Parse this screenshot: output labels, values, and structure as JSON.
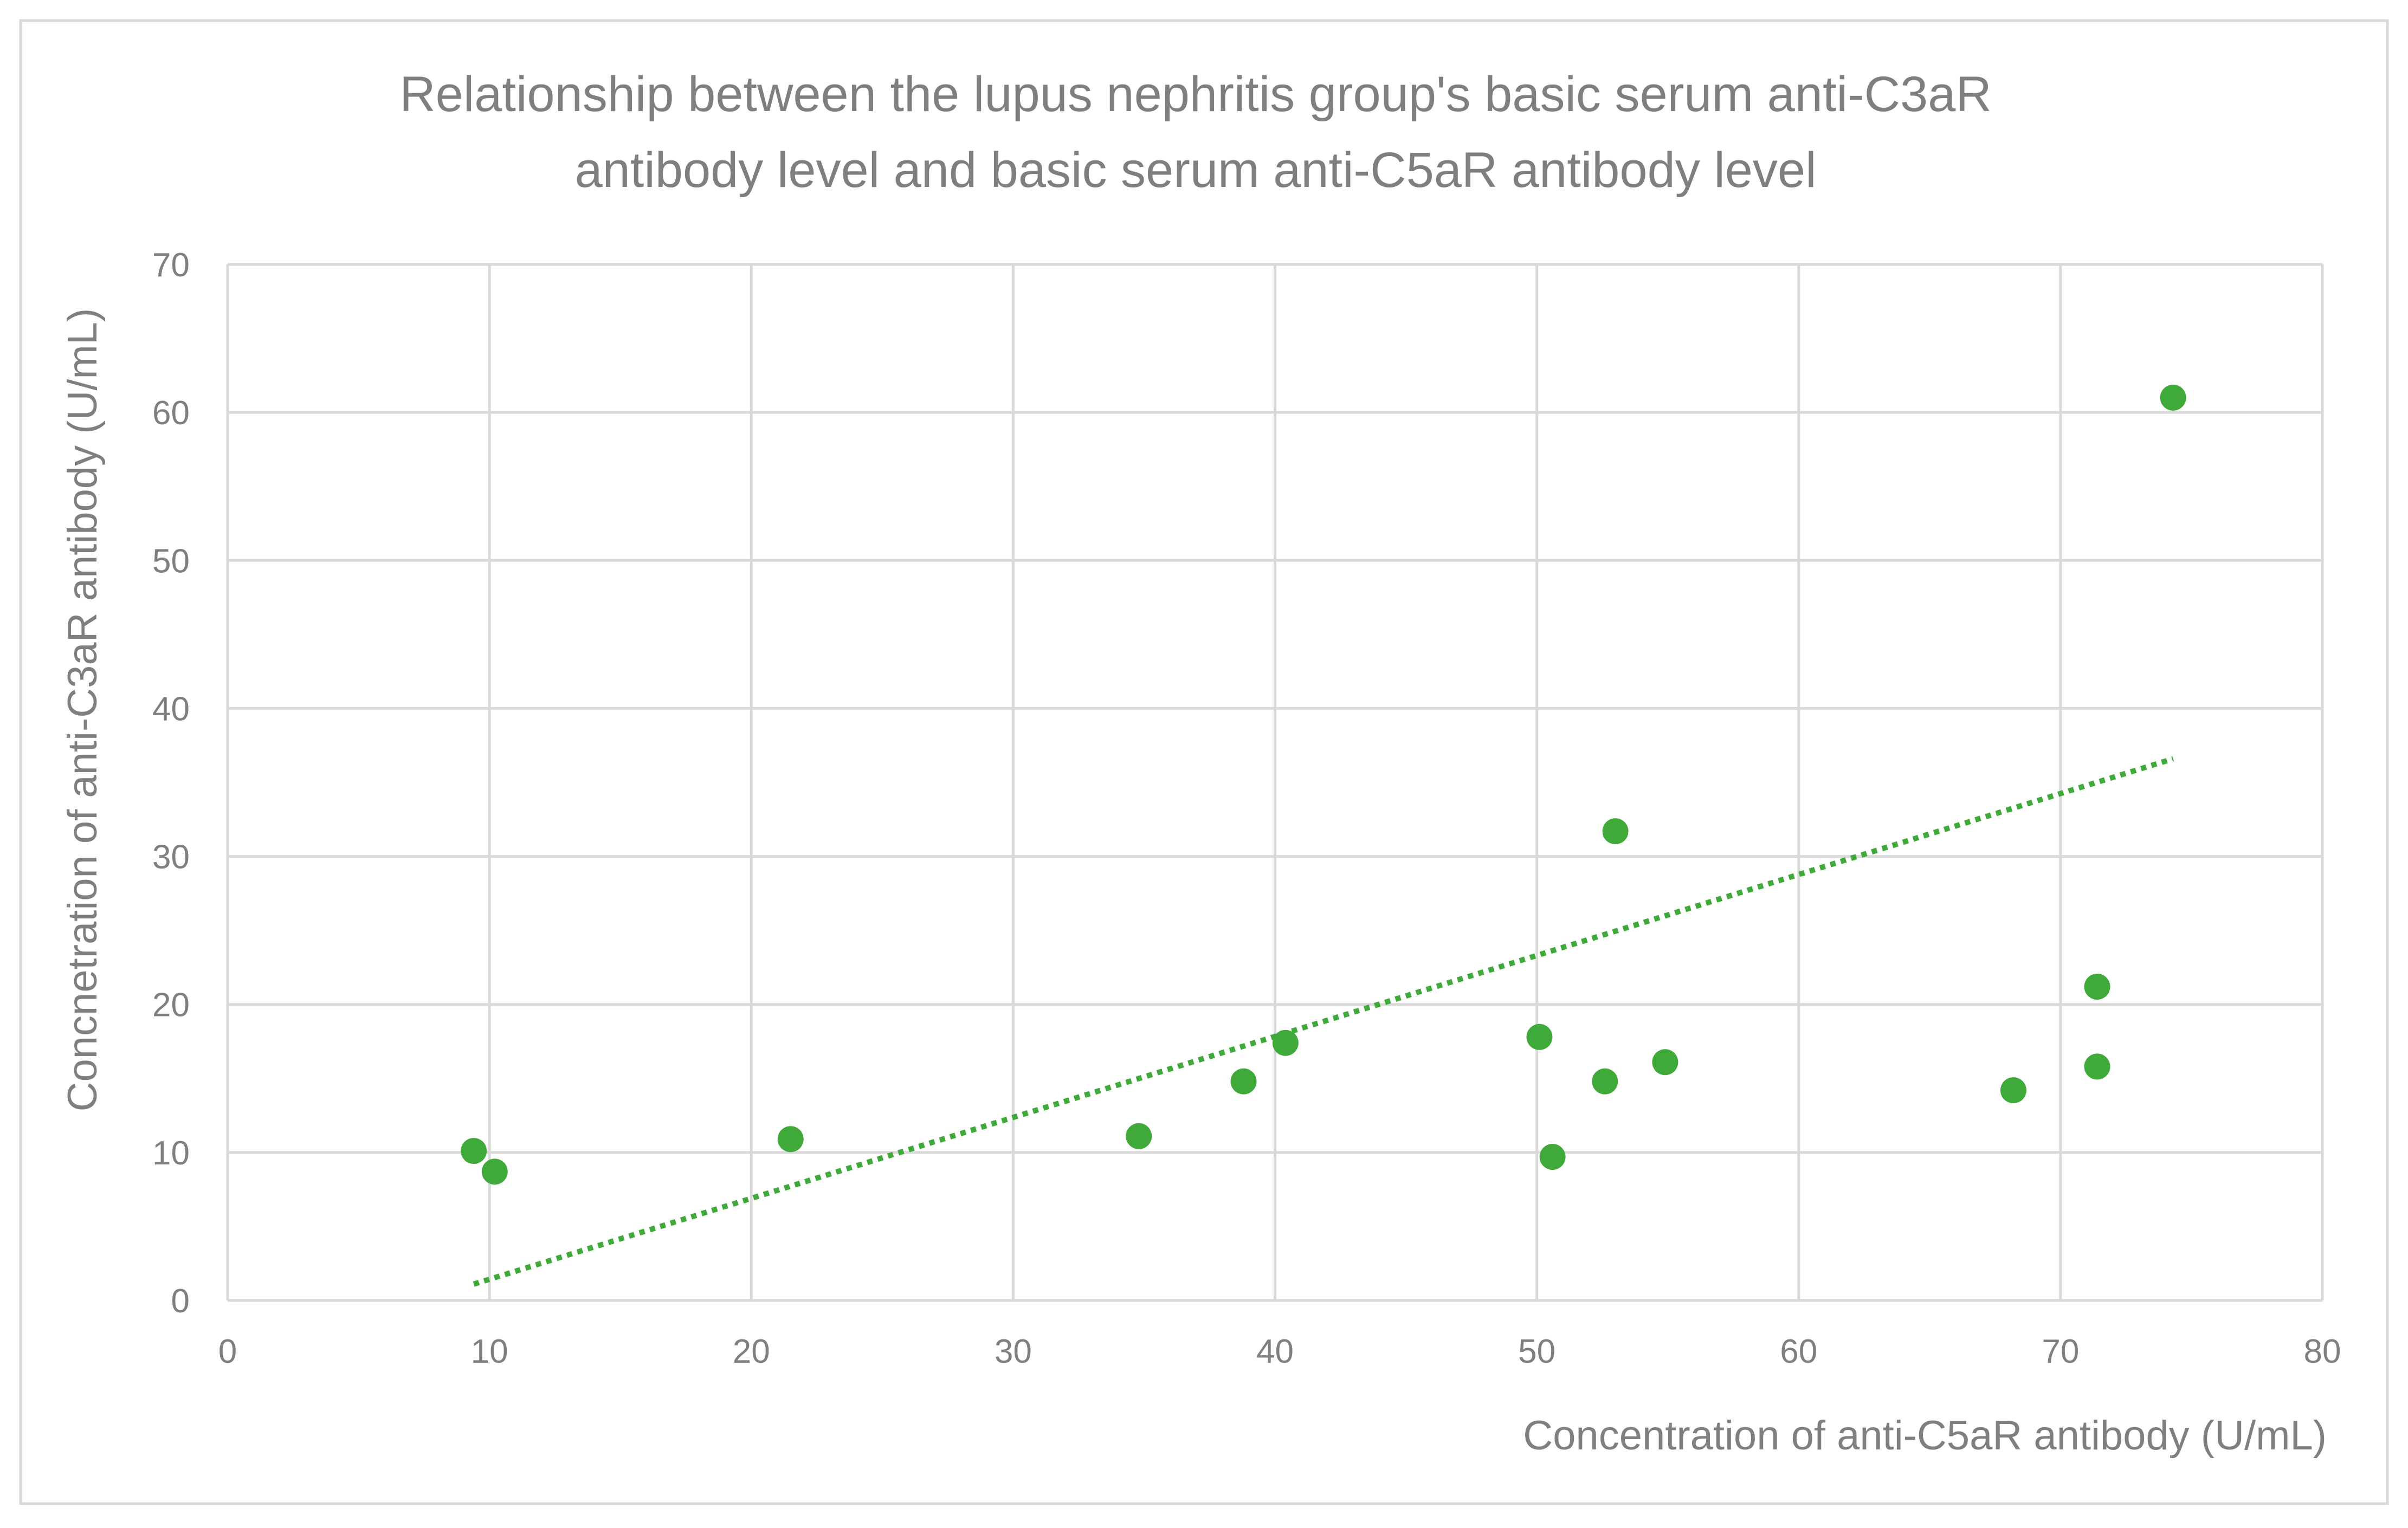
{
  "chart_data": {
    "type": "scatter",
    "title": "Relationship between the lupus nephritis group's basic serum anti-C3aR antibody level and basic serum anti-C5aR antibody level",
    "title_lines": [
      "Relationship between the lupus nephritis group's basic serum anti-C3aR",
      "antibody level and basic serum anti-C5aR antibody level"
    ],
    "xlabel": "Concentration of anti-C5aR antibody (U/mL)",
    "ylabel": "Concnetration of anti-C3aR antibody (U/mL)",
    "xlim": [
      0,
      80
    ],
    "ylim": [
      0,
      70
    ],
    "xticks": [
      0,
      10,
      20,
      30,
      40,
      50,
      60,
      70,
      80
    ],
    "yticks": [
      0,
      10,
      20,
      30,
      40,
      50,
      60,
      70
    ],
    "grid": true,
    "legend": "none",
    "points": [
      {
        "x": 9.4,
        "y": 10.1
      },
      {
        "x": 10.2,
        "y": 8.7
      },
      {
        "x": 21.5,
        "y": 10.9
      },
      {
        "x": 34.8,
        "y": 11.1
      },
      {
        "x": 38.8,
        "y": 14.8
      },
      {
        "x": 40.4,
        "y": 17.4
      },
      {
        "x": 50.1,
        "y": 17.8
      },
      {
        "x": 50.6,
        "y": 9.7
      },
      {
        "x": 52.6,
        "y": 14.8
      },
      {
        "x": 53.0,
        "y": 31.7
      },
      {
        "x": 54.9,
        "y": 16.1
      },
      {
        "x": 68.2,
        "y": 14.2
      },
      {
        "x": 71.4,
        "y": 21.2
      },
      {
        "x": 71.4,
        "y": 15.8
      },
      {
        "x": 74.3,
        "y": 61.0
      }
    ],
    "trendline": {
      "type": "linear",
      "style": "dotted",
      "from": {
        "x": 9.4,
        "y": 1.1
      },
      "to": {
        "x": 74.3,
        "y": 36.6
      }
    },
    "colors": {
      "marker": "#3faa3a",
      "trendline": "#3faa3a",
      "grid": "#d9d9d9",
      "text": "#7f7f7f",
      "frame": "#d9d9d9"
    }
  }
}
